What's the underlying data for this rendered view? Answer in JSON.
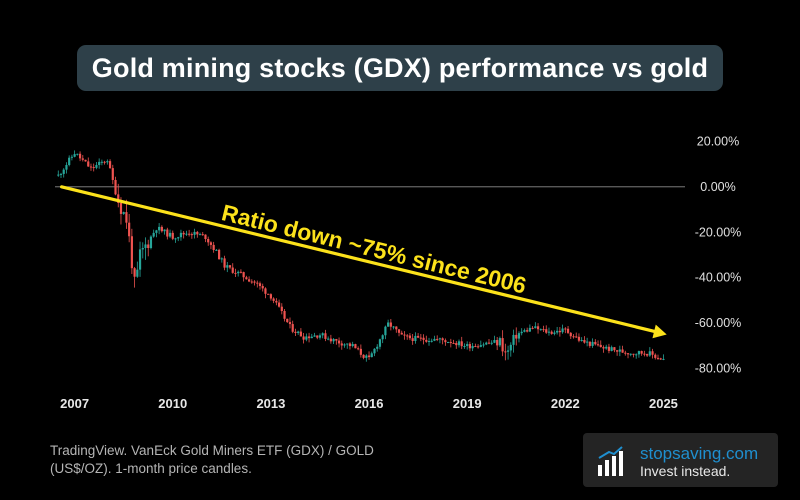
{
  "title": "Gold mining stocks (GDX) performance vs gold",
  "annotation": "Ratio down ~75% since 2006",
  "caption": "TradingView. VanEck Gold Miners ETF (GDX) / GOLD (US$/OZ). 1-month price candles.",
  "brand": {
    "name": "stopsaving.com",
    "tagline": "Invest instead.",
    "logo": "bar-chart-icon"
  },
  "colors": {
    "up": "#26a69a",
    "down": "#ef5350",
    "annotation": "#fce21b",
    "zero_line": "#8c8c8c"
  },
  "chart_data": {
    "type": "line",
    "style": "candlestick",
    "interval": "1-month",
    "y_unit": "%",
    "ylim": [
      -85,
      25
    ],
    "y_ticks": [
      "20.00%",
      "0.00%",
      "-20.00%",
      "-40.00%",
      "-60.00%",
      "-80.00%"
    ],
    "y_tick_values": [
      20,
      0,
      -20,
      -40,
      -60,
      -80
    ],
    "x_ticks": [
      "2007",
      "2010",
      "2013",
      "2016",
      "2019",
      "2022",
      "2025"
    ],
    "x_tick_values": [
      2007,
      2010,
      2013,
      2016,
      2019,
      2022,
      2025
    ],
    "xlim": [
      2006.4,
      2025.2
    ],
    "reference_line": 0,
    "x": [
      2006.5,
      2007.0,
      2007.5,
      2008.0,
      2008.3,
      2008.6,
      2008.85,
      2009.0,
      2009.5,
      2010.0,
      2010.5,
      2011.0,
      2011.3,
      2011.6,
      2012.0,
      2012.5,
      2013.0,
      2013.3,
      2013.6,
      2014.0,
      2014.5,
      2015.0,
      2015.5,
      2015.8,
      2016.0,
      2016.3,
      2016.6,
      2017.0,
      2017.5,
      2018.0,
      2018.5,
      2019.0,
      2019.5,
      2020.0,
      2020.2,
      2020.5,
      2021.0,
      2021.5,
      2022.0,
      2022.5,
      2023.0,
      2023.5,
      2024.0,
      2024.5,
      2025.0
    ],
    "series": [
      {
        "values": [
          5,
          15,
          8,
          12,
          -5,
          -15,
          -45,
          -30,
          -18,
          -22,
          -20,
          -22,
          -28,
          -35,
          -38,
          -42,
          -48,
          -55,
          -62,
          -66,
          -65,
          -68,
          -70,
          -74,
          -76,
          -68,
          -60,
          -66,
          -67,
          -67,
          -68,
          -70,
          -69,
          -68,
          -74,
          -65,
          -62,
          -64,
          -63,
          -68,
          -70,
          -72,
          -73,
          -73,
          -76
        ]
      }
    ],
    "trend": {
      "from": {
        "x": 2006.6,
        "y": 0
      },
      "to": {
        "x": 2025.1,
        "y": -65
      }
    }
  }
}
